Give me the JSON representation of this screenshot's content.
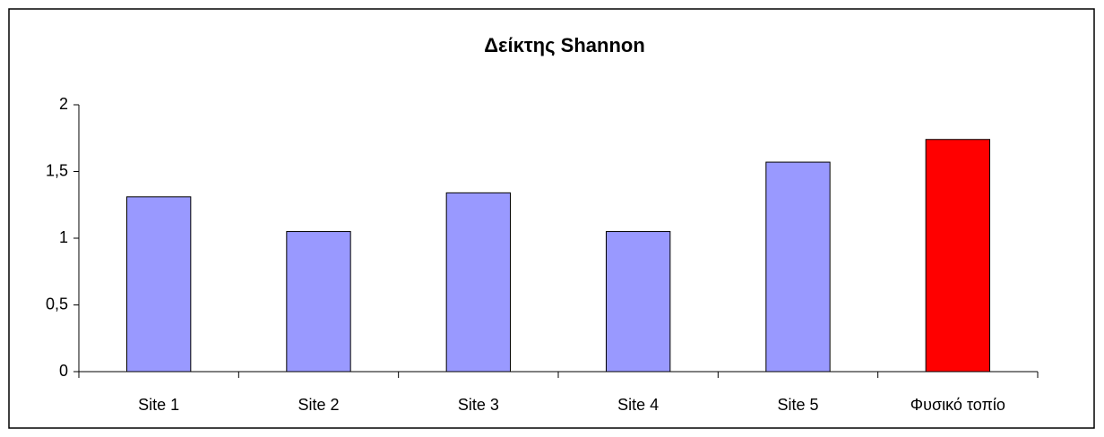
{
  "chart_data": {
    "type": "bar",
    "title": "Δείκτης Shannon",
    "categories": [
      "Site 1",
      "Site 2",
      "Site 3",
      "Site 4",
      "Site 5",
      "Φυσικό τοπίο"
    ],
    "values": [
      1.31,
      1.05,
      1.34,
      1.05,
      1.57,
      1.74
    ],
    "colors": [
      "#9999ff",
      "#9999ff",
      "#9999ff",
      "#9999ff",
      "#9999ff",
      "#ff0000"
    ],
    "ylim": [
      0,
      2
    ],
    "yticks": [
      0,
      {
        "value": 0.5,
        "label": "0,5"
      },
      1,
      {
        "value": 1.5,
        "label": "1,5"
      },
      2
    ],
    "grid": false
  }
}
